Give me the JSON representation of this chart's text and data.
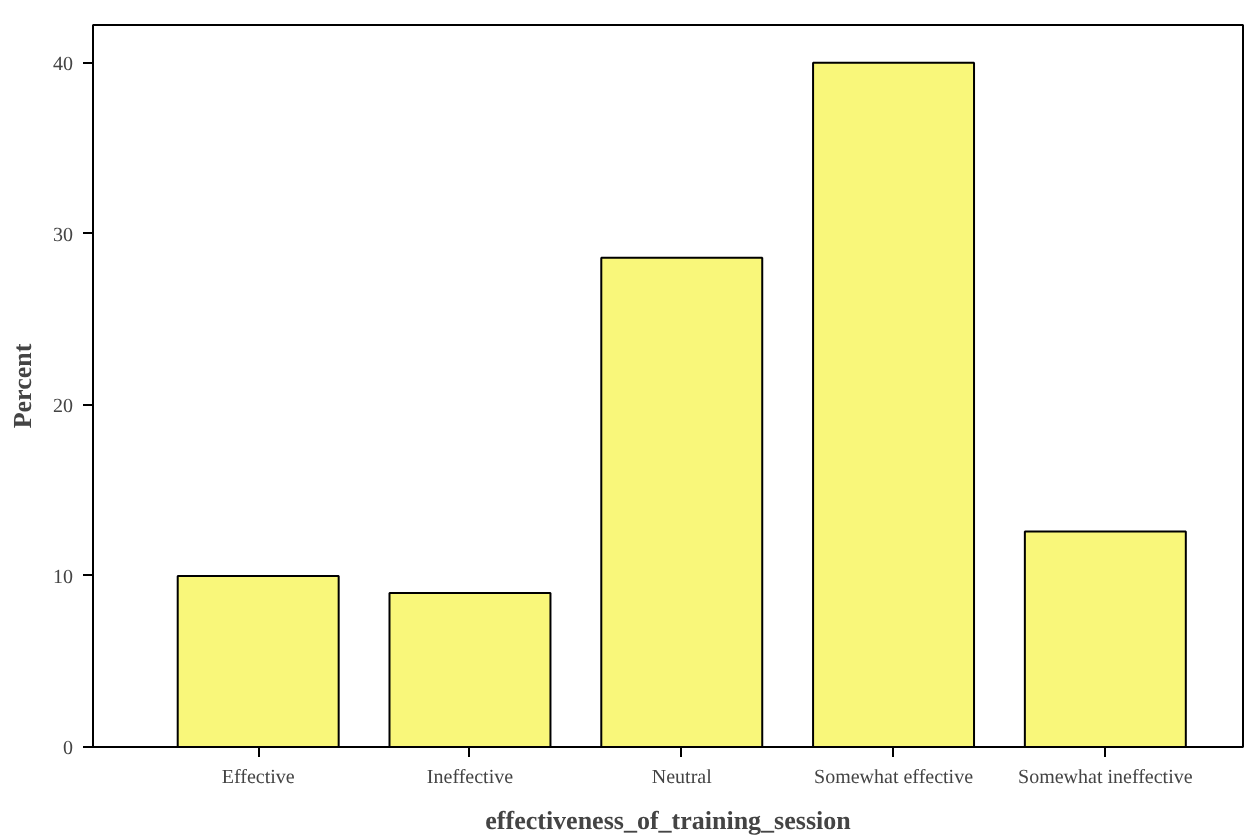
{
  "chart_data": {
    "type": "bar",
    "xlabel": "effectiveness_of_training_session",
    "ylabel": "Percent",
    "categories": [
      "Effective",
      "Ineffective",
      "Neutral",
      "Somewhat effective",
      "Somewhat ineffective"
    ],
    "values": [
      10,
      9,
      28.6,
      40,
      12.6
    ],
    "color": "#f9f77a",
    "ylim": [
      0,
      42.2
    ],
    "yticks": [
      0,
      10,
      20,
      30,
      40
    ],
    "grid": false
  }
}
